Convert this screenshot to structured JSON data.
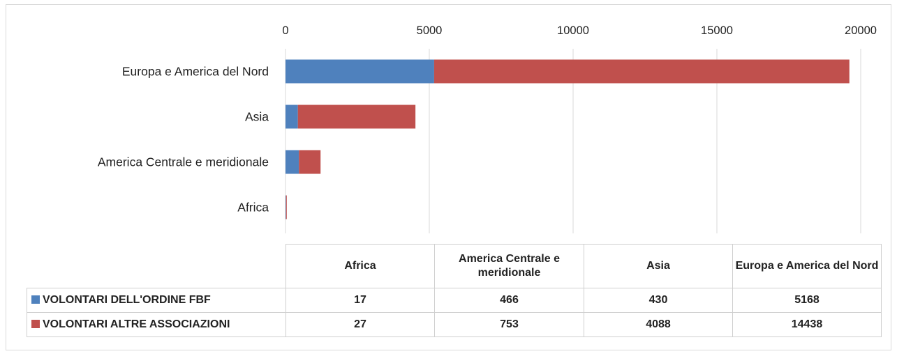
{
  "chart_data": {
    "type": "bar",
    "orientation": "horizontal",
    "stacked": true,
    "categories": [
      "Africa",
      "America Centrale e meridionale",
      "Asia",
      "Europa e America del Nord"
    ],
    "series": [
      {
        "name": "VOLONTARI DELL'ORDINE FBF",
        "color": "#4F81BD",
        "values": [
          17,
          466,
          430,
          5168
        ]
      },
      {
        "name": "VOLONTARI ALTRE ASSOCIAZIONI",
        "color": "#C0504D",
        "values": [
          27,
          753,
          4088,
          14438
        ]
      }
    ],
    "xlim": [
      0,
      20000
    ],
    "xticks": [
      "0",
      "5000",
      "10000",
      "15000",
      "20000"
    ],
    "x_axis_position": "top",
    "grid": true,
    "legend": "data table below chart",
    "table": {
      "header": [
        "Africa",
        "America Centrale e meridionale",
        "Asia",
        "Europa e America del Nord"
      ],
      "rows": [
        {
          "label": "VOLONTARI DELL'ORDINE FBF",
          "values": [
            "17",
            "466",
            "430",
            "5168"
          ]
        },
        {
          "label": "VOLONTARI ALTRE ASSOCIAZIONI",
          "values": [
            "27",
            "753",
            "4088",
            "14438"
          ]
        }
      ]
    }
  }
}
